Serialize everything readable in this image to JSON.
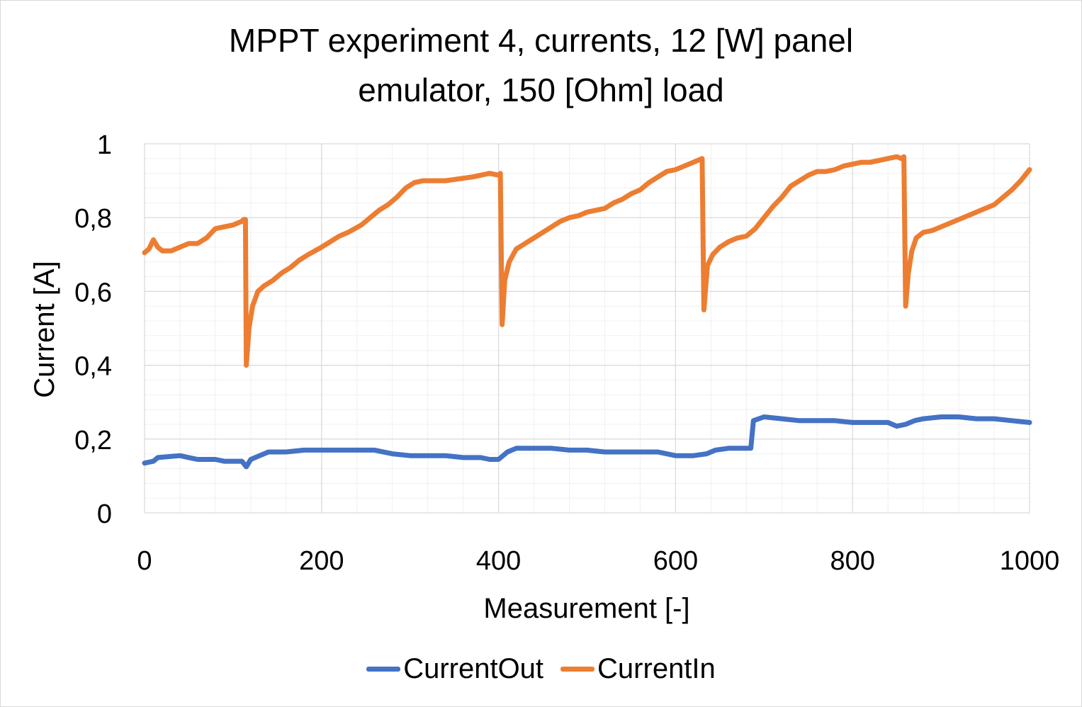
{
  "chart_data": {
    "type": "line",
    "title_line1": "MPPT experiment 4, currents, 12 [W] panel",
    "title_line2": "emulator, 150 [Ohm] load",
    "xlabel": "Measurement [-]",
    "ylabel": "Current [A]",
    "xlim": [
      0,
      1000
    ],
    "ylim": [
      0,
      1
    ],
    "x_ticks": [
      "0",
      "200",
      "400",
      "600",
      "800",
      "1000"
    ],
    "y_ticks": [
      "0",
      "0,2",
      "0,4",
      "0,6",
      "0,8",
      "1"
    ],
    "grid": true,
    "legend_position": "bottom",
    "series": [
      {
        "name": "CurrentOut",
        "color": "#4472C4",
        "points": [
          [
            0,
            0.135
          ],
          [
            10,
            0.14
          ],
          [
            15,
            0.15
          ],
          [
            40,
            0.155
          ],
          [
            50,
            0.15
          ],
          [
            60,
            0.145
          ],
          [
            80,
            0.145
          ],
          [
            90,
            0.14
          ],
          [
            100,
            0.14
          ],
          [
            110,
            0.14
          ],
          [
            115,
            0.125
          ],
          [
            120,
            0.145
          ],
          [
            130,
            0.155
          ],
          [
            140,
            0.165
          ],
          [
            160,
            0.165
          ],
          [
            180,
            0.17
          ],
          [
            200,
            0.17
          ],
          [
            220,
            0.17
          ],
          [
            240,
            0.17
          ],
          [
            260,
            0.17
          ],
          [
            280,
            0.16
          ],
          [
            300,
            0.155
          ],
          [
            320,
            0.155
          ],
          [
            340,
            0.155
          ],
          [
            360,
            0.15
          ],
          [
            380,
            0.15
          ],
          [
            390,
            0.145
          ],
          [
            400,
            0.145
          ],
          [
            410,
            0.165
          ],
          [
            420,
            0.175
          ],
          [
            440,
            0.175
          ],
          [
            460,
            0.175
          ],
          [
            480,
            0.17
          ],
          [
            500,
            0.17
          ],
          [
            520,
            0.165
          ],
          [
            540,
            0.165
          ],
          [
            560,
            0.165
          ],
          [
            580,
            0.165
          ],
          [
            600,
            0.155
          ],
          [
            620,
            0.155
          ],
          [
            635,
            0.16
          ],
          [
            645,
            0.17
          ],
          [
            660,
            0.175
          ],
          [
            685,
            0.175
          ],
          [
            688,
            0.25
          ],
          [
            700,
            0.26
          ],
          [
            720,
            0.255
          ],
          [
            740,
            0.25
          ],
          [
            760,
            0.25
          ],
          [
            780,
            0.25
          ],
          [
            800,
            0.245
          ],
          [
            820,
            0.245
          ],
          [
            840,
            0.245
          ],
          [
            850,
            0.235
          ],
          [
            860,
            0.24
          ],
          [
            870,
            0.25
          ],
          [
            880,
            0.255
          ],
          [
            900,
            0.26
          ],
          [
            920,
            0.26
          ],
          [
            940,
            0.255
          ],
          [
            960,
            0.255
          ],
          [
            980,
            0.25
          ],
          [
            1000,
            0.245
          ]
        ]
      },
      {
        "name": "CurrentIn",
        "color": "#ED7D31",
        "points": [
          [
            0,
            0.705
          ],
          [
            5,
            0.715
          ],
          [
            10,
            0.74
          ],
          [
            15,
            0.72
          ],
          [
            20,
            0.71
          ],
          [
            30,
            0.71
          ],
          [
            40,
            0.72
          ],
          [
            50,
            0.73
          ],
          [
            60,
            0.73
          ],
          [
            70,
            0.745
          ],
          [
            80,
            0.77
          ],
          [
            90,
            0.775
          ],
          [
            100,
            0.78
          ],
          [
            110,
            0.79
          ],
          [
            112,
            0.795
          ],
          [
            114,
            0.795
          ],
          [
            115,
            0.4
          ],
          [
            118,
            0.5
          ],
          [
            122,
            0.56
          ],
          [
            128,
            0.6
          ],
          [
            135,
            0.615
          ],
          [
            145,
            0.63
          ],
          [
            155,
            0.65
          ],
          [
            165,
            0.665
          ],
          [
            175,
            0.685
          ],
          [
            185,
            0.7
          ],
          [
            200,
            0.72
          ],
          [
            210,
            0.735
          ],
          [
            220,
            0.75
          ],
          [
            230,
            0.76
          ],
          [
            245,
            0.78
          ],
          [
            255,
            0.8
          ],
          [
            265,
            0.82
          ],
          [
            275,
            0.835
          ],
          [
            285,
            0.855
          ],
          [
            295,
            0.88
          ],
          [
            305,
            0.895
          ],
          [
            315,
            0.9
          ],
          [
            325,
            0.9
          ],
          [
            340,
            0.9
          ],
          [
            355,
            0.905
          ],
          [
            370,
            0.91
          ],
          [
            380,
            0.915
          ],
          [
            390,
            0.92
          ],
          [
            400,
            0.915
          ],
          [
            402,
            0.92
          ],
          [
            404,
            0.51
          ],
          [
            407,
            0.63
          ],
          [
            412,
            0.68
          ],
          [
            420,
            0.715
          ],
          [
            430,
            0.73
          ],
          [
            440,
            0.745
          ],
          [
            450,
            0.76
          ],
          [
            460,
            0.775
          ],
          [
            470,
            0.79
          ],
          [
            480,
            0.8
          ],
          [
            490,
            0.805
          ],
          [
            500,
            0.815
          ],
          [
            510,
            0.82
          ],
          [
            520,
            0.825
          ],
          [
            530,
            0.84
          ],
          [
            540,
            0.85
          ],
          [
            550,
            0.865
          ],
          [
            560,
            0.875
          ],
          [
            570,
            0.895
          ],
          [
            580,
            0.91
          ],
          [
            590,
            0.925
          ],
          [
            600,
            0.93
          ],
          [
            610,
            0.94
          ],
          [
            620,
            0.95
          ],
          [
            625,
            0.955
          ],
          [
            630,
            0.96
          ],
          [
            632,
            0.55
          ],
          [
            636,
            0.67
          ],
          [
            642,
            0.7
          ],
          [
            650,
            0.72
          ],
          [
            660,
            0.735
          ],
          [
            670,
            0.745
          ],
          [
            680,
            0.75
          ],
          [
            690,
            0.77
          ],
          [
            700,
            0.8
          ],
          [
            710,
            0.83
          ],
          [
            720,
            0.855
          ],
          [
            730,
            0.885
          ],
          [
            740,
            0.9
          ],
          [
            750,
            0.915
          ],
          [
            760,
            0.925
          ],
          [
            770,
            0.925
          ],
          [
            780,
            0.93
          ],
          [
            790,
            0.94
          ],
          [
            800,
            0.945
          ],
          [
            810,
            0.95
          ],
          [
            820,
            0.95
          ],
          [
            830,
            0.955
          ],
          [
            840,
            0.96
          ],
          [
            850,
            0.965
          ],
          [
            855,
            0.96
          ],
          [
            858,
            0.965
          ],
          [
            860,
            0.56
          ],
          [
            863,
            0.65
          ],
          [
            867,
            0.71
          ],
          [
            872,
            0.745
          ],
          [
            880,
            0.76
          ],
          [
            890,
            0.765
          ],
          [
            900,
            0.775
          ],
          [
            910,
            0.785
          ],
          [
            920,
            0.795
          ],
          [
            930,
            0.805
          ],
          [
            940,
            0.815
          ],
          [
            950,
            0.825
          ],
          [
            960,
            0.835
          ],
          [
            970,
            0.855
          ],
          [
            980,
            0.875
          ],
          [
            990,
            0.9
          ],
          [
            1000,
            0.93
          ]
        ]
      }
    ]
  }
}
